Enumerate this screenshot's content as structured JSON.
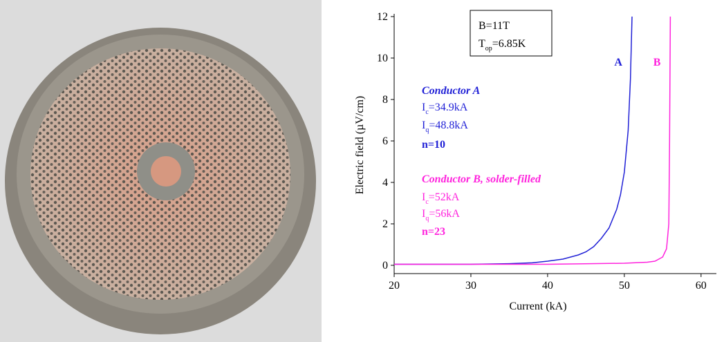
{
  "chart_data": {
    "type": "line",
    "x_label": "Current (kA)",
    "y_label": "Electric field (µV/cm)",
    "xlim": [
      20,
      62
    ],
    "ylim": [
      -0.4,
      12
    ],
    "xticks": [
      20,
      30,
      40,
      50,
      60
    ],
    "yticks": [
      0,
      2,
      4,
      6,
      8,
      10,
      12
    ],
    "series": [
      {
        "name": "A",
        "color": "#1f1fd6",
        "x": [
          20,
          25,
          30,
          35,
          38,
          40,
          42,
          44,
          45,
          46,
          47,
          48,
          49,
          49.5,
          50,
          50.5,
          50.8,
          51
        ],
        "values": [
          0.05,
          0.05,
          0.05,
          0.08,
          0.12,
          0.2,
          0.3,
          0.5,
          0.65,
          0.9,
          1.3,
          1.8,
          2.7,
          3.4,
          4.5,
          6.5,
          9,
          12
        ]
      },
      {
        "name": "B",
        "color": "#ff22dd",
        "x": [
          20,
          30,
          40,
          50,
          53,
          54,
          55,
          55.5,
          55.8,
          55.9,
          56
        ],
        "values": [
          0.05,
          0.05,
          0.05,
          0.1,
          0.15,
          0.2,
          0.4,
          0.8,
          2,
          6,
          12
        ]
      }
    ],
    "box_lines": [
      {
        "text": "B=11T"
      },
      {
        "text": "T",
        "sub": "op",
        "rest": "=6.85K"
      }
    ],
    "notes": [
      {
        "text": "Conductor A",
        "style": "bold-italic",
        "color": "#1f1fd6"
      },
      {
        "text": "I",
        "sub": "c",
        "rest": "=34.9kA",
        "color": "#1f1fd6"
      },
      {
        "text": "I",
        "sub": "q",
        "rest": "=48.8kA",
        "color": "#1f1fd6"
      },
      {
        "text": "n=10",
        "style": "bold",
        "color": "#1f1fd6"
      },
      {
        "text": "Conductor B, solder-filled",
        "style": "bold-italic",
        "color": "#ff22dd"
      },
      {
        "text": "I",
        "sub": "c",
        "rest": "=52kA",
        "color": "#ff22dd"
      },
      {
        "text": "I",
        "sub": "q",
        "rest": "=56kA",
        "color": "#ff22dd"
      },
      {
        "text": "n=23",
        "style": "bold",
        "color": "#ff22dd"
      }
    ]
  }
}
